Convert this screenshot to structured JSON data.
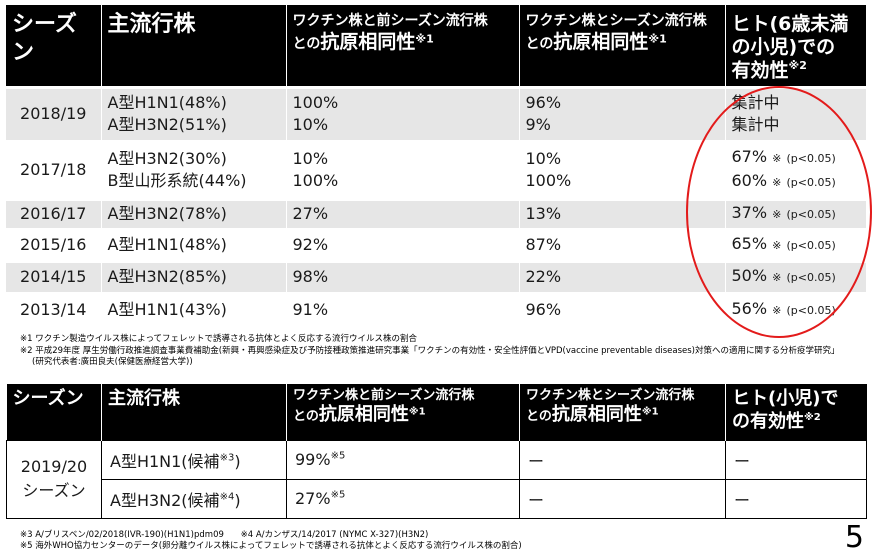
{
  "table1": {
    "headers": {
      "season": "シーズン",
      "strain": "主流行株",
      "prev_line1": "ワクチン株と前シーズン流行株",
      "prev_line2a": "との",
      "prev_line2b": "抗原相同性",
      "prev_sup": "※1",
      "same_line1": "ワクチン株とシーズン流行株",
      "same_line2a": "との",
      "same_line2b": "抗原相同性",
      "same_sup": "※1",
      "eff_line1": "ヒト(6歳未満",
      "eff_line2": "の小児)での",
      "eff_line3": "有効性",
      "eff_sup": "※2"
    },
    "rows": [
      {
        "season": "2018/19",
        "strain1": "A型H1N1(48%)",
        "strain2": "A型H3N2(51%)",
        "prev1": "100%",
        "prev2": "10%",
        "same1": "96%",
        "same2": "9%",
        "eff1": "集計中",
        "eff1_mark": "",
        "eff1_p": "",
        "eff2": "集計中",
        "eff2_mark": "",
        "eff2_p": ""
      },
      {
        "season": "2017/18",
        "strain1": "A型H3N2(30%)",
        "strain2": "B型山形系統(44%)",
        "prev1": "10%",
        "prev2": "100%",
        "same1": "10%",
        "same2": "100%",
        "eff1": "67%",
        "eff1_mark": "※",
        "eff1_p": "(p<0.05)",
        "eff2": "60%",
        "eff2_mark": "※",
        "eff2_p": "(p<0.05)"
      },
      {
        "season": "2016/17",
        "strain1": "A型H3N2(78%)",
        "strain2": "",
        "prev1": "27%",
        "prev2": "",
        "same1": "13%",
        "same2": "",
        "eff1": "37%",
        "eff1_mark": "※",
        "eff1_p": "(p<0.05)",
        "eff2": "",
        "eff2_mark": "",
        "eff2_p": ""
      },
      {
        "season": "2015/16",
        "strain1": "A型H1N1(48%)",
        "strain2": "",
        "prev1": "92%",
        "prev2": "",
        "same1": "87%",
        "same2": "",
        "eff1": "65%",
        "eff1_mark": "※",
        "eff1_p": "(p<0.05)",
        "eff2": "",
        "eff2_mark": "",
        "eff2_p": ""
      },
      {
        "season": "2014/15",
        "strain1": "A型H3N2(85%)",
        "strain2": "",
        "prev1": "98%",
        "prev2": "",
        "same1": "22%",
        "same2": "",
        "eff1": "50%",
        "eff1_mark": "※",
        "eff1_p": "(p<0.05)",
        "eff2": "",
        "eff2_mark": "",
        "eff2_p": ""
      },
      {
        "season": "2013/14",
        "strain1": "A型H1N1(43%)",
        "strain2": "",
        "prev1": "91%",
        "prev2": "",
        "same1": "96%",
        "same2": "",
        "eff1": "56%",
        "eff1_mark": "※",
        "eff1_p": "(p<0.05)",
        "eff2": "",
        "eff2_mark": "",
        "eff2_p": ""
      }
    ]
  },
  "notes1": {
    "n1": "※1 ワクチン製造ウイルス株によってフェレットで誘導される抗体とよく反応する流行ウイルス株の割合",
    "n2": "※2 平成29年度 厚生労働行政推進調査事業費補助金(新興・再興感染症及び予防接種政策推進研究事業「ワクチンの有効性・安全性評価とVPD(vaccine preventable diseases)対策への適用に関する分析疫学研究」",
    "n3": "(研究代表者:廣田良夫(保健医療経営大学))"
  },
  "table2": {
    "headers": {
      "season": "シーズン",
      "strain": "主流行株",
      "prev_line1": "ワクチン株と前シーズン流行株",
      "prev_line2a": "との",
      "prev_line2b": "抗原相同性",
      "prev_sup": "※1",
      "same_line1": "ワクチン株とシーズン流行株",
      "same_line2a": "との",
      "same_line2b": "抗原相同性",
      "same_sup": "※1",
      "eff_line1": "ヒト(小児)で",
      "eff_line2": "の有効性",
      "eff_sup": "※2"
    },
    "season_line1": "2019/20",
    "season_line2": "シーズン",
    "rows": [
      {
        "strain": "A型H1N1(候補",
        "strain_sup": "※3",
        "strain_end": ")",
        "prev": "99%",
        "prev_sup": "※5",
        "same": "ー",
        "eff": "ー"
      },
      {
        "strain": "A型H3N2(候補",
        "strain_sup": "※4",
        "strain_end": ")",
        "prev": "27%",
        "prev_sup": "※5",
        "same": "ー",
        "eff": "ー"
      }
    ]
  },
  "notes2": {
    "n3": "※3 A/ブリスベン/02/2018(IVR-190)(H1N1)pdm09",
    "n4": "※4 A/カンザス/14/2017 (NYMC X-327)(H3N2)",
    "n5": "※5 海外WHO協力センターのデータ(卵分離ウイルス株によってフェレットで誘導される抗体とよく反応する流行ウイルス株の割合)"
  },
  "page_number": "5",
  "colors": {
    "header_bg": "#000000",
    "row_shade": "#e6e6e6",
    "circle": "#e31b1b"
  }
}
